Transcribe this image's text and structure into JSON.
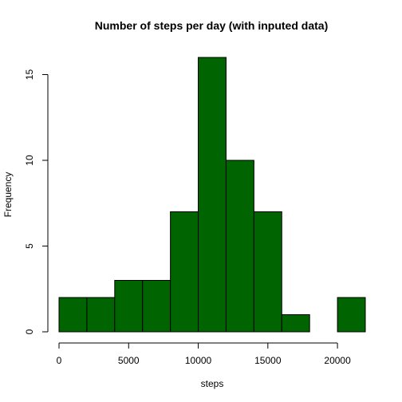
{
  "chart_data": {
    "type": "bar",
    "title": "Number of steps per day (with inputed data)",
    "xlabel": "steps",
    "ylabel": "Frequency",
    "bar_color": "#006400",
    "bins": [
      {
        "from": 0,
        "to": 2000,
        "count": 2
      },
      {
        "from": 2000,
        "to": 4000,
        "count": 2
      },
      {
        "from": 4000,
        "to": 6000,
        "count": 3
      },
      {
        "from": 6000,
        "to": 8000,
        "count": 3
      },
      {
        "from": 8000,
        "to": 10000,
        "count": 7
      },
      {
        "from": 10000,
        "to": 12000,
        "count": 16
      },
      {
        "from": 12000,
        "to": 14000,
        "count": 10
      },
      {
        "from": 14000,
        "to": 16000,
        "count": 7
      },
      {
        "from": 16000,
        "to": 18000,
        "count": 1
      },
      {
        "from": 18000,
        "to": 20000,
        "count": 0
      },
      {
        "from": 20000,
        "to": 22000,
        "count": 2
      }
    ],
    "xlim": [
      0,
      22000
    ],
    "ylim": [
      0,
      16
    ],
    "xticks": [
      0,
      5000,
      10000,
      15000,
      20000
    ],
    "yticks": [
      0,
      5,
      10,
      15
    ],
    "grid": false,
    "legend": "none"
  }
}
